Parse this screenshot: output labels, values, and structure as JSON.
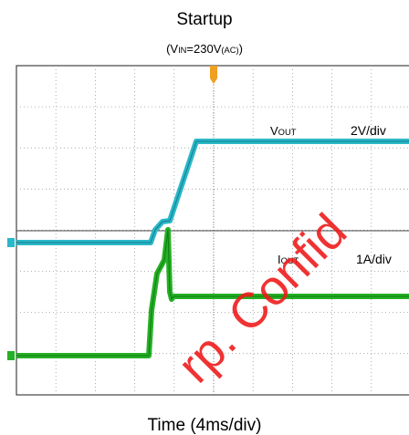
{
  "title": "Startup",
  "subtitle": [
    {
      "text": "(V"
    },
    {
      "sub": "IN"
    },
    {
      "text": "=230V"
    },
    {
      "sub": "(AC)"
    },
    {
      "text": ")"
    }
  ],
  "traces": [
    {
      "label": [
        {
          "text": "V"
        },
        {
          "sub": "OUT"
        }
      ],
      "scale": "2V/div"
    },
    {
      "label": [
        {
          "text": "I"
        },
        {
          "sub": "OUT"
        }
      ],
      "scale": "1A/div"
    }
  ],
  "x_label": "Time (4ms/div)",
  "watermark": "rp. Confid"
}
